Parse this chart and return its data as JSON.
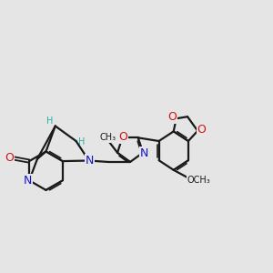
{
  "bg_color": "#e5e5e5",
  "atom_color_N": "#1414cc",
  "atom_color_O": "#cc1414",
  "atom_color_H": "#2ab0a0",
  "bond_color": "#1a1a1a",
  "bond_width": 1.6,
  "figsize": [
    3.0,
    3.0
  ],
  "dpi": 100,
  "xlim": [
    0,
    10
  ],
  "ylim": [
    1.5,
    9.5
  ]
}
